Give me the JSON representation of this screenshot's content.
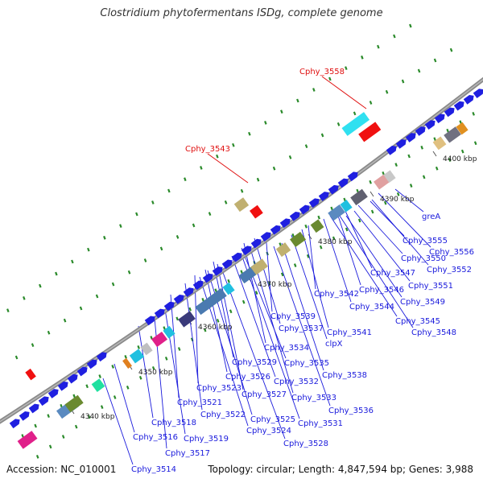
{
  "title": "Clostridium phytofermentans ISDg, complete genome",
  "footer": {
    "accession": "Accession: NC_010001",
    "summary": "Topology: circular; Length: 4,847,594 bp; Genes: 3,988"
  },
  "colors": {
    "backbone": "#8a8a8a",
    "label_blue": "#1a1adc",
    "label_red": "#e01010",
    "tick_green": "#2a8a2a"
  },
  "kbp_ticks": [
    {
      "label": "4340 kbp"
    },
    {
      "label": "4350 kbp"
    },
    {
      "label": "4360 kbp"
    },
    {
      "label": "4370 kbp"
    },
    {
      "label": "4380 kbp"
    },
    {
      "label": "4390 kbp"
    },
    {
      "label": "4400 kbp"
    }
  ],
  "red_labels": [
    "Cphy_3558",
    "Cphy_3543"
  ],
  "blue_labels": [
    "greA",
    "Cphy_3555",
    "Cphy_3556",
    "Cphy_3550",
    "Cphy_3552",
    "Cphy_3547",
    "Cphy_3551",
    "Cphy_3546",
    "Cphy_3549",
    "Cphy_3542",
    "Cphy_3544",
    "Cphy_3545",
    "Cphy_3548",
    "Cphy_3539",
    "Cphy_3537",
    "Cphy_3541",
    "Cphy_3534",
    "clpX",
    "Cphy_3529",
    "Cphy_3535",
    "Cphy_3526",
    "Cphy_3538",
    "Cphy_3532",
    "Cphy_3523",
    "Cphy_3527",
    "Cphy_3533",
    "Cphy_3521",
    "Cphy_3536",
    "Cphy_3522",
    "Cphy_3525",
    "Cphy_3531",
    "Cphy_3518",
    "Cphy_3524",
    "Cphy_3516",
    "Cphy_3519",
    "Cphy_3528",
    "Cphy_3517",
    "Cphy_3514"
  ]
}
